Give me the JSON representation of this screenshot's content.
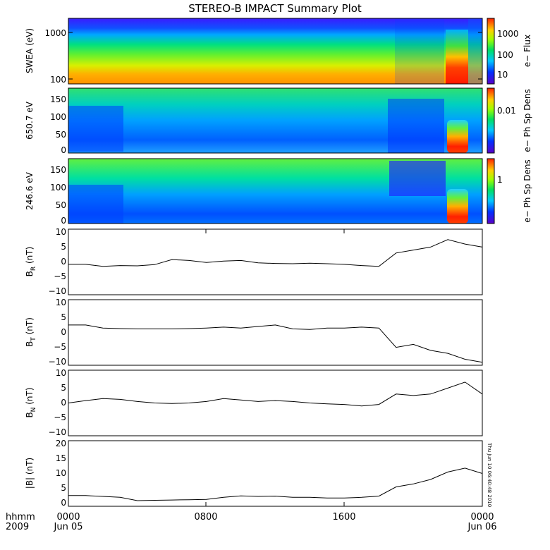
{
  "title": "STEREO-B IMPACT Summary Plot",
  "footer": {
    "time_label": "hhmm",
    "year_label": "2009",
    "ticks": [
      "0000",
      "0800",
      "1600",
      "0000"
    ],
    "dates": [
      "Jun 05",
      "Jun 06"
    ]
  },
  "timestamp": "Thu Jun 10 06:40:48 2010",
  "chart_data": [
    {
      "type": "heatmap",
      "ylabel": "SWEA (eV)",
      "ytick_labels": [
        "1000",
        "100"
      ],
      "ylim": [
        95,
        2000
      ],
      "yscale": "log",
      "colorbar": {
        "label": "e− Flux",
        "tick_labels": [
          "1000",
          "100",
          "10"
        ],
        "scale": "log"
      }
    },
    {
      "type": "heatmap",
      "ylabel": "650.7 eV",
      "ytick_labels": [
        "150",
        "100",
        "50",
        "0"
      ],
      "ylim": [
        0,
        180
      ],
      "colorbar": {
        "label": "e− Ph Sp Dens",
        "tick_labels": [
          "0.01"
        ],
        "scale": "log"
      }
    },
    {
      "type": "heatmap",
      "ylabel": "246.6 eV",
      "ytick_labels": [
        "150",
        "100",
        "50",
        "0"
      ],
      "ylim": [
        0,
        180
      ],
      "colorbar": {
        "label": "e− Ph Sp Dens",
        "tick_labels": [
          "1"
        ],
        "scale": "log"
      }
    },
    {
      "type": "line",
      "ylabel_main": "B",
      "ylabel_sub": "R",
      "ylabel_unit": " (nT)",
      "ytick_labels": [
        "10",
        "5",
        "0",
        "−5",
        "−10"
      ],
      "ylim": [
        -11,
        11
      ],
      "x": [
        0,
        1,
        2,
        3,
        4,
        5,
        6,
        7,
        8,
        9,
        10,
        11,
        12,
        13,
        14,
        15,
        16,
        17,
        18,
        19,
        20,
        21,
        22,
        23,
        24
      ],
      "values": [
        -0.8,
        -0.8,
        -1.5,
        -1.2,
        -1.3,
        -0.9,
        0.8,
        0.5,
        -0.2,
        0.3,
        0.5,
        -0.3,
        -0.5,
        -0.6,
        -0.4,
        -0.6,
        -0.8,
        -1.2,
        -1.5,
        3.0,
        4.0,
        5.0,
        7.5,
        6.0,
        5.0
      ]
    },
    {
      "type": "line",
      "ylabel_main": "B",
      "ylabel_sub": "T",
      "ylabel_unit": " (nT)",
      "ytick_labels": [
        "10",
        "5",
        "0",
        "−5",
        "−10"
      ],
      "ylim": [
        -11,
        11
      ],
      "x": [
        0,
        1,
        2,
        3,
        4,
        5,
        6,
        7,
        8,
        9,
        10,
        11,
        12,
        13,
        14,
        15,
        16,
        17,
        18,
        19,
        20,
        21,
        22,
        23,
        24
      ],
      "values": [
        2.5,
        2.5,
        1.5,
        1.3,
        1.2,
        1.2,
        1.2,
        1.3,
        1.5,
        1.8,
        1.5,
        2.0,
        2.5,
        1.2,
        1.0,
        1.5,
        1.5,
        1.8,
        1.5,
        -5.0,
        -4.0,
        -6.0,
        -7.0,
        -9.0,
        -10.0
      ]
    },
    {
      "type": "line",
      "ylabel_main": "B",
      "ylabel_sub": "N",
      "ylabel_unit": " (nT)",
      "ytick_labels": [
        "10",
        "5",
        "0",
        "−5",
        "−10"
      ],
      "ylim": [
        -11,
        11
      ],
      "x": [
        0,
        1,
        2,
        3,
        4,
        5,
        6,
        7,
        8,
        9,
        10,
        11,
        12,
        13,
        14,
        15,
        16,
        17,
        18,
        19,
        20,
        21,
        22,
        23,
        24
      ],
      "values": [
        0.0,
        0.8,
        1.5,
        1.2,
        0.5,
        0.0,
        -0.2,
        0.0,
        0.5,
        1.5,
        1.0,
        0.5,
        0.8,
        0.5,
        0.0,
        -0.3,
        -0.5,
        -1.0,
        -0.5,
        3.0,
        2.5,
        3.0,
        5.0,
        7.0,
        3.0
      ]
    },
    {
      "type": "line",
      "ylabel": "|B| (nT)",
      "ytick_labels": [
        "20",
        "15",
        "10",
        "5",
        "0"
      ],
      "ylim": [
        -1,
        21
      ],
      "x": [
        0,
        1,
        2,
        3,
        4,
        5,
        6,
        7,
        8,
        9,
        10,
        11,
        12,
        13,
        14,
        15,
        16,
        17,
        18,
        19,
        20,
        21,
        22,
        23,
        24
      ],
      "values": [
        2.6,
        2.6,
        2.3,
        2.0,
        0.9,
        1.0,
        1.1,
        1.2,
        1.3,
        2.0,
        2.5,
        2.3,
        2.4,
        2.0,
        2.0,
        1.8,
        1.8,
        2.0,
        2.4,
        5.5,
        6.5,
        8.0,
        10.5,
        11.8,
        10.0
      ]
    }
  ]
}
